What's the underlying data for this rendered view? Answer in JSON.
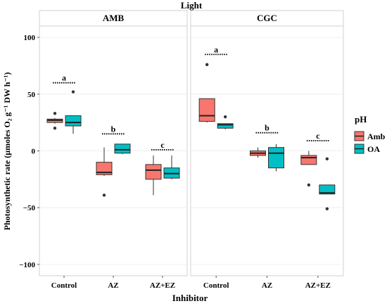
{
  "chart_data": {
    "type": "boxplot",
    "top_title": "Light",
    "xlabel": "Inhibitor",
    "ylabel": "Photosynthetic rate (µmoles O₂ g⁻¹ DW h⁻¹)",
    "ylim": [
      -110,
      110
    ],
    "y_ticks": [
      -100,
      -50,
      0,
      50,
      100
    ],
    "categories": [
      "Control",
      "AZ",
      "AZ+EZ"
    ],
    "legend": {
      "title": "pH",
      "placement": "right",
      "entries": [
        {
          "label": "Amb",
          "color": "#F8766D"
        },
        {
          "label": "OA",
          "color": "#00BFC4"
        }
      ]
    },
    "panels": [
      {
        "name": "AMB",
        "groups": [
          {
            "category": "Control",
            "letter": "a",
            "letter_y": 60,
            "boxes": [
              {
                "series": "Amb",
                "min": 24,
                "q1": 25,
                "median": 27,
                "q3": 28,
                "max": 29,
                "outliers": [
                  33,
                  20
                ]
              },
              {
                "series": "OA",
                "min": 15,
                "q1": 22,
                "median": 25,
                "q3": 31,
                "max": 31,
                "outliers": [
                  52
                ]
              }
            ]
          },
          {
            "category": "AZ",
            "letter": "b",
            "letter_y": 15,
            "boxes": [
              {
                "series": "Amb",
                "min": -22,
                "q1": -21,
                "median": -19,
                "q3": -10,
                "max": 3,
                "outliers": [
                  -39
                ]
              },
              {
                "series": "OA",
                "min": -3,
                "q1": -2,
                "median": 1,
                "q3": 6,
                "max": 6,
                "outliers": []
              }
            ]
          },
          {
            "category": "AZ+EZ",
            "letter": "c",
            "letter_y": 1,
            "boxes": [
              {
                "series": "Amb",
                "min": -39,
                "q1": -25,
                "median": -17,
                "q3": -12,
                "max": -4,
                "outliers": []
              },
              {
                "series": "OA",
                "min": -25,
                "q1": -24,
                "median": -20,
                "q3": -15,
                "max": -4,
                "outliers": []
              }
            ]
          }
        ]
      },
      {
        "name": "CGC",
        "groups": [
          {
            "category": "Control",
            "letter": "a",
            "letter_y": 85,
            "boxes": [
              {
                "series": "Amb",
                "min": 25,
                "q1": 26,
                "median": 31,
                "q3": 46,
                "max": 46,
                "outliers": [
                  76
                ]
              },
              {
                "series": "OA",
                "min": 19,
                "q1": 20,
                "median": 23,
                "q3": 24,
                "max": 24,
                "outliers": [
                  30
                ]
              }
            ]
          },
          {
            "category": "AZ",
            "letter": "b",
            "letter_y": 16,
            "boxes": [
              {
                "series": "Amb",
                "min": -6,
                "q1": -4,
                "median": -2,
                "q3": 0,
                "max": 3,
                "outliers": []
              },
              {
                "series": "OA",
                "min": -18,
                "q1": -15,
                "median": -2,
                "q3": 3,
                "max": 6,
                "outliers": []
              }
            ]
          },
          {
            "category": "AZ+EZ",
            "letter": "c",
            "letter_y": 9,
            "boxes": [
              {
                "series": "Amb",
                "min": -12,
                "q1": -12,
                "median": -6,
                "q3": -4,
                "max": 0,
                "outliers": [
                  -30
                ]
              },
              {
                "series": "OA",
                "min": -38,
                "q1": -38,
                "median": -37,
                "q3": -30,
                "max": -30,
                "outliers": [
                  -7,
                  -51
                ]
              }
            ]
          }
        ]
      }
    ]
  }
}
